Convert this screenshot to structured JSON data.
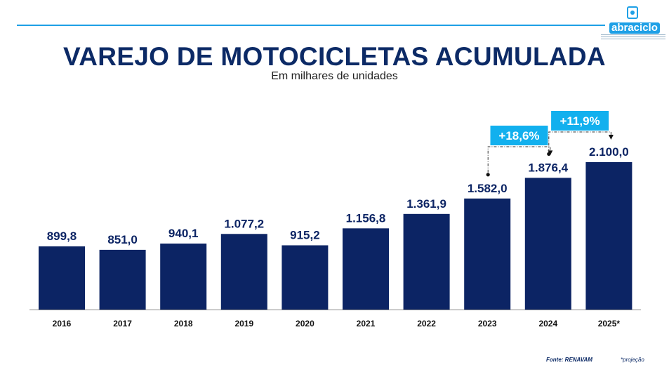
{
  "header": {
    "title": "VAREJO DE MOTOCICLETAS ACUMULADA",
    "subtitle": "Em milhares de unidades",
    "logo_text": "abraciclo"
  },
  "colors": {
    "bar": "#0c2464",
    "title": "#0c2a66",
    "label": "#0c2464",
    "accent": "#1ea0e6",
    "badge": "#12b0ee",
    "axis": "#888888"
  },
  "chart_data": {
    "type": "bar",
    "title": "VAREJO DE MOTOCICLETAS ACUMULADA",
    "subtitle": "Em milhares de unidades",
    "categories": [
      "2016",
      "2017",
      "2018",
      "2019",
      "2020",
      "2021",
      "2022",
      "2023",
      "2024",
      "2025*"
    ],
    "values": [
      899.8,
      851.0,
      940.1,
      1077.2,
      915.2,
      1156.8,
      1361.9,
      1582.0,
      1876.4,
      2100.0
    ],
    "value_labels": [
      "899,8",
      "851,0",
      "940,1",
      "1.077,2",
      "915,2",
      "1.156,8",
      "1.361,9",
      "1.582,0",
      "1.876,4",
      "2.100,0"
    ],
    "ylim": [
      0,
      2100
    ],
    "grid": false,
    "annotations": [
      {
        "label": "+18,6%",
        "from": "2023",
        "to": "2024"
      },
      {
        "label": "+11,9%",
        "from": "2024",
        "to": "2025*"
      }
    ]
  },
  "footer": {
    "source": "Fonte: RENAVAM",
    "note": "*projeção"
  }
}
